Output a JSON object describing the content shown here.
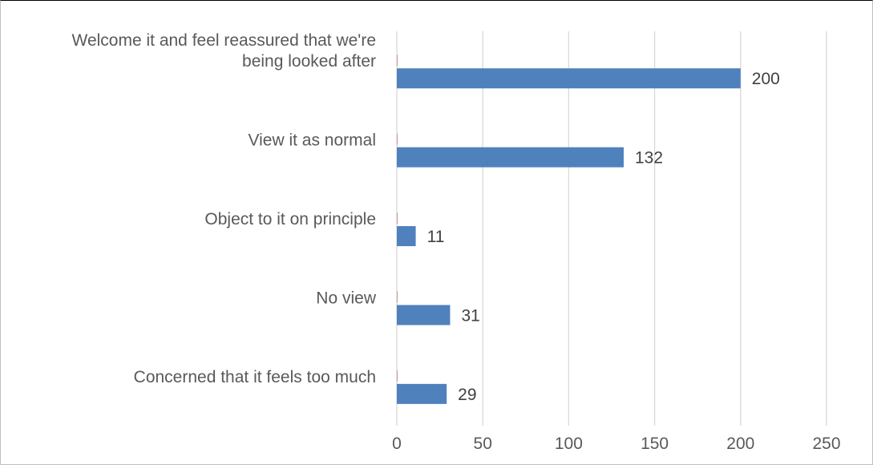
{
  "chart_data": {
    "type": "bar",
    "orientation": "horizontal",
    "title": "",
    "xlabel": "",
    "ylabel": "",
    "categories": [
      [
        "Welcome it and feel reassured that we're",
        "being looked after"
      ],
      [
        "View it as normal"
      ],
      [
        "Object to it on principle"
      ],
      [
        "No view"
      ],
      [
        "Concerned that it feels too much"
      ]
    ],
    "series": [
      {
        "values": [
          0,
          0,
          0,
          0,
          0
        ],
        "color": "#c0504d"
      },
      {
        "values": [
          200,
          132,
          11,
          31,
          29
        ],
        "color": "#4f81bd"
      }
    ],
    "xlim": [
      0,
      250
    ],
    "xticks": [
      "0",
      "50",
      "100",
      "150",
      "200",
      "250"
    ],
    "grid": true,
    "data_labels": [
      "200",
      "132",
      "11",
      "31",
      "29"
    ],
    "legend": "none"
  }
}
